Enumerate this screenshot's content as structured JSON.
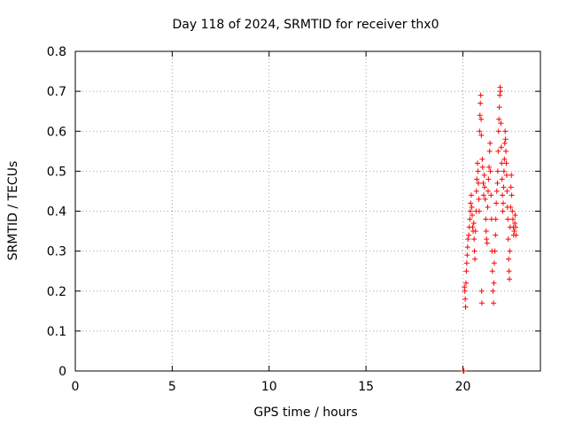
{
  "chart_data": {
    "type": "scatter",
    "title": "Day 118 of 2024, SRMTID for receiver thx0",
    "xlabel": "GPS time / hours",
    "ylabel": "SRMTID / TECUs",
    "xlim": [
      0,
      24
    ],
    "ylim": [
      0,
      0.8
    ],
    "xticks": [
      0,
      5,
      10,
      15,
      20
    ],
    "yticks": [
      0,
      0.1,
      0.2,
      0.3,
      0.4,
      0.5,
      0.6,
      0.7,
      0.8
    ],
    "xtick_labels": [
      "0",
      "5",
      "10",
      "15",
      "20"
    ],
    "ytick_labels": [
      "0",
      "0.1",
      "0.2",
      "0.3",
      "0.4",
      "0.5",
      "0.6",
      "0.7",
      "0.8"
    ],
    "grid": true,
    "marker": "+",
    "marker_color": "#ff0000",
    "series": [
      {
        "name": "thx0",
        "points": [
          [
            20.02,
            0.0
          ],
          [
            20.04,
            0.0
          ],
          [
            20.05,
            0.0
          ],
          [
            20.08,
            0.21
          ],
          [
            20.1,
            0.2
          ],
          [
            20.12,
            0.18
          ],
          [
            20.14,
            0.16
          ],
          [
            20.16,
            0.22
          ],
          [
            20.18,
            0.25
          ],
          [
            20.2,
            0.27
          ],
          [
            20.22,
            0.29
          ],
          [
            20.24,
            0.31
          ],
          [
            20.26,
            0.33
          ],
          [
            20.3,
            0.34
          ],
          [
            20.33,
            0.36
          ],
          [
            20.36,
            0.38
          ],
          [
            20.38,
            0.4
          ],
          [
            20.4,
            0.42
          ],
          [
            20.43,
            0.44
          ],
          [
            20.46,
            0.41
          ],
          [
            20.48,
            0.39
          ],
          [
            20.5,
            0.36
          ],
          [
            20.53,
            0.35
          ],
          [
            20.56,
            0.37
          ],
          [
            20.58,
            0.33
          ],
          [
            20.6,
            0.3
          ],
          [
            20.62,
            0.28
          ],
          [
            20.65,
            0.35
          ],
          [
            20.68,
            0.4
          ],
          [
            20.7,
            0.45
          ],
          [
            20.72,
            0.48
          ],
          [
            20.75,
            0.52
          ],
          [
            20.78,
            0.5
          ],
          [
            20.8,
            0.47
          ],
          [
            20.82,
            0.43
          ],
          [
            20.84,
            0.4
          ],
          [
            20.86,
            0.6
          ],
          [
            20.88,
            0.64
          ],
          [
            20.9,
            0.67
          ],
          [
            20.92,
            0.69
          ],
          [
            20.94,
            0.63
          ],
          [
            20.95,
            0.59
          ],
          [
            20.97,
            0.2
          ],
          [
            20.98,
            0.17
          ],
          [
            21.0,
            0.53
          ],
          [
            21.02,
            0.51
          ],
          [
            21.05,
            0.47
          ],
          [
            21.07,
            0.44
          ],
          [
            21.1,
            0.49
          ],
          [
            21.12,
            0.46
          ],
          [
            21.15,
            0.43
          ],
          [
            21.18,
            0.38
          ],
          [
            21.2,
            0.35
          ],
          [
            21.22,
            0.33
          ],
          [
            21.25,
            0.32
          ],
          [
            21.28,
            0.41
          ],
          [
            21.3,
            0.45
          ],
          [
            21.32,
            0.48
          ],
          [
            21.35,
            0.51
          ],
          [
            21.38,
            0.55
          ],
          [
            21.4,
            0.57
          ],
          [
            21.42,
            0.5
          ],
          [
            21.45,
            0.44
          ],
          [
            21.48,
            0.38
          ],
          [
            21.5,
            0.3
          ],
          [
            21.52,
            0.25
          ],
          [
            21.55,
            0.2
          ],
          [
            21.58,
            0.17
          ],
          [
            21.6,
            0.22
          ],
          [
            21.62,
            0.27
          ],
          [
            21.65,
            0.3
          ],
          [
            21.68,
            0.34
          ],
          [
            21.7,
            0.38
          ],
          [
            21.72,
            0.42
          ],
          [
            21.75,
            0.45
          ],
          [
            21.78,
            0.47
          ],
          [
            21.8,
            0.5
          ],
          [
            21.82,
            0.55
          ],
          [
            21.84,
            0.6
          ],
          [
            21.86,
            0.63
          ],
          [
            21.88,
            0.66
          ],
          [
            21.9,
            0.69
          ],
          [
            21.92,
            0.71
          ],
          [
            21.94,
            0.7
          ],
          [
            21.96,
            0.62
          ],
          [
            21.98,
            0.56
          ],
          [
            22.0,
            0.52
          ],
          [
            22.02,
            0.48
          ],
          [
            22.04,
            0.44
          ],
          [
            22.06,
            0.4
          ],
          [
            22.08,
            0.42
          ],
          [
            22.1,
            0.46
          ],
          [
            22.12,
            0.5
          ],
          [
            22.14,
            0.53
          ],
          [
            22.16,
            0.57
          ],
          [
            22.18,
            0.6
          ],
          [
            22.2,
            0.58
          ],
          [
            22.22,
            0.55
          ],
          [
            22.24,
            0.52
          ],
          [
            22.26,
            0.49
          ],
          [
            22.28,
            0.45
          ],
          [
            22.3,
            0.41
          ],
          [
            22.32,
            0.38
          ],
          [
            22.34,
            0.33
          ],
          [
            22.36,
            0.28
          ],
          [
            22.38,
            0.25
          ],
          [
            22.4,
            0.23
          ],
          [
            22.42,
            0.3
          ],
          [
            22.44,
            0.36
          ],
          [
            22.46,
            0.41
          ],
          [
            22.48,
            0.46
          ],
          [
            22.5,
            0.49
          ],
          [
            22.52,
            0.44
          ],
          [
            22.55,
            0.4
          ],
          [
            22.58,
            0.38
          ],
          [
            22.6,
            0.36
          ],
          [
            22.62,
            0.34
          ],
          [
            22.65,
            0.35
          ],
          [
            22.68,
            0.37
          ],
          [
            22.7,
            0.39
          ],
          [
            22.72,
            0.36
          ],
          [
            22.74,
            0.34
          ]
        ]
      }
    ]
  }
}
